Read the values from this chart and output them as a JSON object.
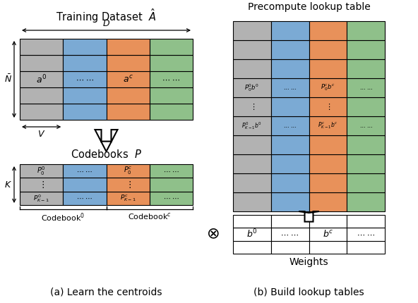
{
  "colors": {
    "gray": "#b2b2b2",
    "blue": "#7baad4",
    "orange": "#e8915a",
    "green": "#8fc08a",
    "white": "#ffffff",
    "black": "#000000",
    "bg": "#ffffff"
  },
  "title_a": "Training Dataset  $\\hat{A}$",
  "title_b": "Precompute lookup table",
  "codebooks_title": "Codebooks  $P$",
  "caption_a": "(a) Learn the centroids",
  "caption_b": "(b) Build lookup tables",
  "weights_label": "Weights"
}
